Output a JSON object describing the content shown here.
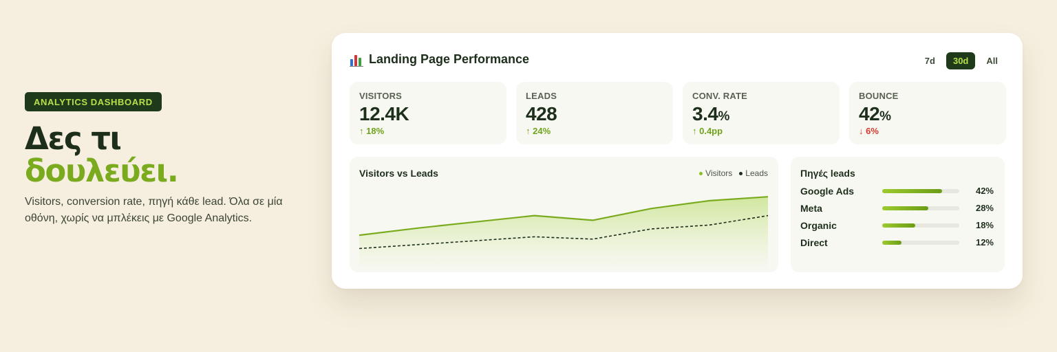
{
  "hero": {
    "badge": "ANALYTICS DASHBOARD",
    "headline_line1": "Δες τι",
    "headline_line2": "δουλεύει.",
    "subtitle": "Visitors, conversion rate, πηγή κάθε lead. Όλα σε μία οθόνη, χωρίς να μπλέκεις με Google Analytics."
  },
  "card": {
    "title": "Landing Page Performance",
    "title_icon": "bar-chart-icon",
    "ranges": [
      {
        "label": "7d",
        "active": false
      },
      {
        "label": "30d",
        "active": true
      },
      {
        "label": "All",
        "active": false
      }
    ]
  },
  "stats": [
    {
      "label": "VISITORS",
      "value": "12.4K",
      "unit": "",
      "delta": "↑ 18%",
      "trend": "up"
    },
    {
      "label": "LEADS",
      "value": "428",
      "unit": "",
      "delta": "↑ 24%",
      "trend": "up"
    },
    {
      "label": "CONV. RATE",
      "value": "3.4",
      "unit": "%",
      "delta": "↑ 0.4pp",
      "trend": "up"
    },
    {
      "label": "BOUNCE",
      "value": "42",
      "unit": "%",
      "delta": "↓ 6%",
      "trend": "down"
    }
  ],
  "colors": {
    "accent": "#7aab1e",
    "dark": "#1f3a1b",
    "up": "#6fa31b",
    "down": "#d83b2c"
  },
  "chart_data": {
    "type": "area",
    "title": "Visitors vs Leads",
    "legend_position": "top-right",
    "grid": false,
    "ylim": [
      0,
      100
    ],
    "x": [
      1,
      2,
      3,
      4,
      5,
      6,
      7,
      8
    ],
    "series": [
      {
        "name": "Visitors",
        "style": "area-solid",
        "color": "#7aab1e",
        "values": [
          35,
          44,
          52,
          60,
          54,
          69,
          79,
          84
        ]
      },
      {
        "name": "Leads",
        "style": "dashed",
        "color": "#1d2e1b",
        "values": [
          18,
          23,
          28,
          33,
          30,
          43,
          48,
          60
        ]
      }
    ]
  },
  "sources": {
    "title": "Πηγές leads",
    "items": [
      {
        "name": "Google Ads",
        "pct_label": "42%",
        "fill": 0.78
      },
      {
        "name": "Meta",
        "pct_label": "28%",
        "fill": 0.6
      },
      {
        "name": "Organic",
        "pct_label": "18%",
        "fill": 0.43
      },
      {
        "name": "Direct",
        "pct_label": "12%",
        "fill": 0.25
      }
    ]
  }
}
